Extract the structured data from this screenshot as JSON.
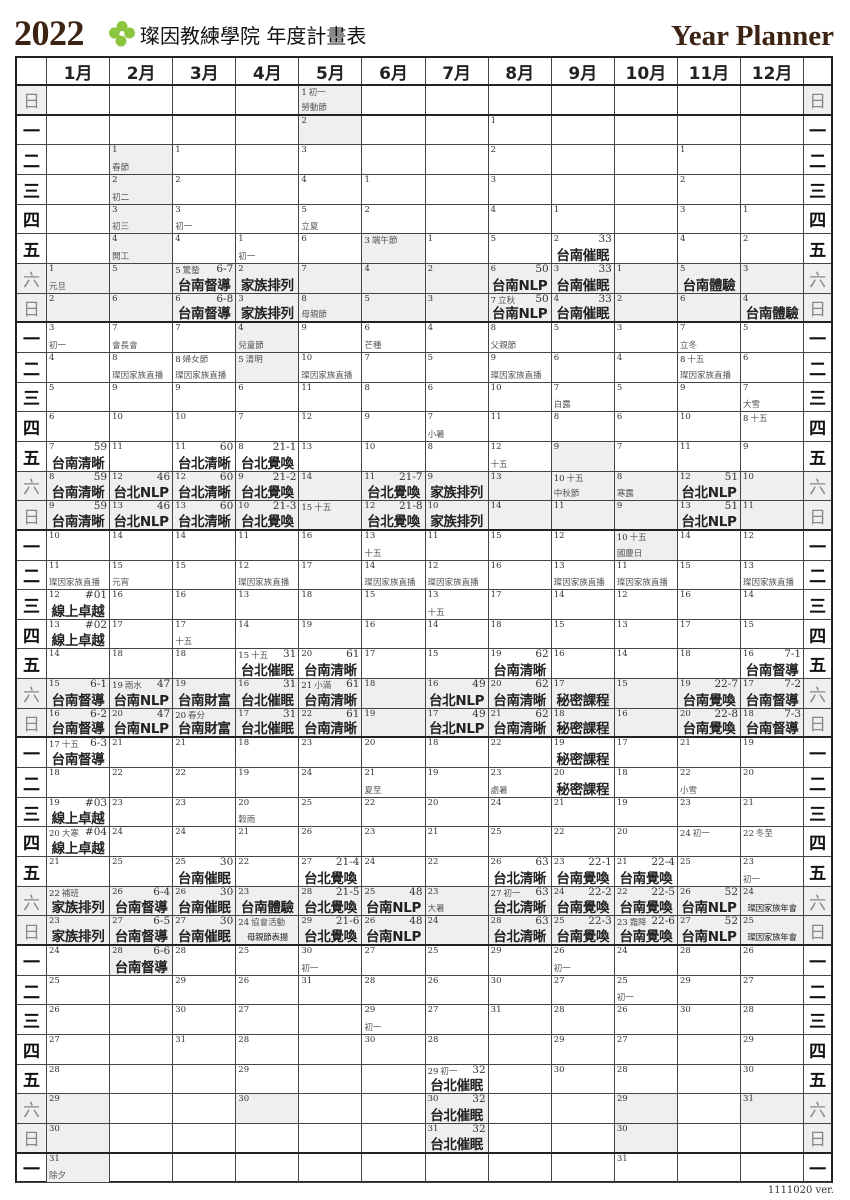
{
  "header": {
    "year": "2022",
    "title": "璨因教練學院 年度計畫表",
    "subtitle": "Year Planner",
    "version": "1111020 ver."
  },
  "colors": {
    "brand_brown": "#3d2314",
    "logo_green": "#8cc63f",
    "weekend_bg": "#efefef"
  },
  "weekdays": [
    "日",
    "一",
    "二",
    "三",
    "四",
    "五",
    "六"
  ],
  "months": [
    {
      "label": "1月",
      "start": 6,
      "days": 31
    },
    {
      "label": "2月",
      "start": 2,
      "days": 28
    },
    {
      "label": "3月",
      "start": 2,
      "days": 31
    },
    {
      "label": "4月",
      "start": 5,
      "days": 30
    },
    {
      "label": "5月",
      "start": 0,
      "days": 31
    },
    {
      "label": "6月",
      "start": 3,
      "days": 30
    },
    {
      "label": "7月",
      "start": 5,
      "days": 31
    },
    {
      "label": "8月",
      "start": 1,
      "days": 31
    },
    {
      "label": "9月",
      "start": 4,
      "days": 30
    },
    {
      "label": "10月",
      "start": 6,
      "days": 31
    },
    {
      "label": "11月",
      "start": 2,
      "days": 30
    },
    {
      "label": "12月",
      "start": 4,
      "days": 31
    }
  ],
  "shaded_holidays": [
    "1-31",
    "2-1",
    "2-2",
    "2-3",
    "2-4",
    "2-28",
    "4-4",
    "4-5",
    "5-2",
    "6-3",
    "9-9",
    "10-10"
  ],
  "notes": {
    "1": {
      "1": {
        "sub": "元旦"
      },
      "3": {
        "sub": "初一"
      },
      "7": {
        "tag": "59",
        "ev": "台南清晰"
      },
      "8": {
        "tag": "59",
        "ev": "台南清晰"
      },
      "9": {
        "tag": "59",
        "ev": "台南清晰"
      },
      "11": {
        "sub": "璨因家族直播"
      },
      "12": {
        "tag": "#01",
        "ev": "線上卓越"
      },
      "13": {
        "tag": "#02",
        "ev": "線上卓越"
      },
      "15": {
        "tag": "6-1",
        "ev": "台南督導"
      },
      "16": {
        "tag": "6-2",
        "ev": "台南督導"
      },
      "17": {
        "sm": "十五",
        "tag": "6-3",
        "ev": "台南督導"
      },
      "19": {
        "tag": "#03",
        "ev": "線上卓越"
      },
      "20": {
        "sm": "大寒",
        "tag": "#04",
        "ev": "線上卓越"
      },
      "22": {
        "sm": "補班",
        "ev": "家族排列"
      },
      "23": {
        "ev": "家族排列"
      },
      "31": {
        "sub": "除夕"
      }
    },
    "2": {
      "1": {
        "sub": "春節"
      },
      "2": {
        "sub": "初二"
      },
      "3": {
        "sub": "初三"
      },
      "4": {
        "sub": "開工"
      },
      "7": {
        "sub": "會長會"
      },
      "8": {
        "sub": "璨因家族直播"
      },
      "12": {
        "tag": "46",
        "ev": "台北NLP"
      },
      "13": {
        "tag": "46",
        "ev": "台北NLP"
      },
      "15": {
        "sub": "元宵"
      },
      "19": {
        "sm": "雨水",
        "tag": "47",
        "ev": "台南NLP"
      },
      "20": {
        "tag": "47",
        "ev": "台南NLP"
      },
      "26": {
        "tag": "6-4",
        "ev": "台南督導"
      },
      "27": {
        "tag": "6-5",
        "ev": "台南督導"
      },
      "28": {
        "tag": "6-6",
        "ev": "台南督導"
      }
    },
    "3": {
      "3": {
        "sub": "初一"
      },
      "5": {
        "sm": "驚蟄",
        "tag": "6-7",
        "ev": "台南督導"
      },
      "6": {
        "tag": "6-8",
        "ev": "台南督導"
      },
      "8": {
        "sm": "婦女節",
        "sub": "璨因家族直播"
      },
      "11": {
        "tag": "60",
        "ev": "台北清晰"
      },
      "12": {
        "tag": "60",
        "ev": "台北清晰"
      },
      "13": {
        "tag": "60",
        "ev": "台北清晰"
      },
      "17": {
        "sub": "十五"
      },
      "19": {
        "ev": "台南財富"
      },
      "20": {
        "sm": "春分",
        "ev": "台南財富"
      },
      "25": {
        "tag": "30",
        "ev": "台南催眠"
      },
      "26": {
        "tag": "30",
        "ev": "台南催眠"
      },
      "27": {
        "tag": "30",
        "ev": "台南催眠"
      }
    },
    "4": {
      "1": {
        "sub": "初一"
      },
      "2": {
        "ev": "家族排列"
      },
      "3": {
        "ev": "家族排列"
      },
      "4": {
        "sub": "兒童節"
      },
      "5": {
        "sm": "清明"
      },
      "8": {
        "tag": "21-1",
        "ev": "台北覺喚"
      },
      "9": {
        "tag": "21-2",
        "ev": "台北覺喚"
      },
      "10": {
        "tag": "21-3",
        "ev": "台北覺喚"
      },
      "12": {
        "sub": "璨因家族直播"
      },
      "15": {
        "sm": "十五",
        "tag": "31",
        "ev": "台北催眠"
      },
      "16": {
        "tag": "31",
        "ev": "台北催眠"
      },
      "17": {
        "tag": "31",
        "ev": "台北催眠"
      },
      "20": {
        "sub": "穀雨"
      },
      "23": {
        "ev": "台南體驗"
      },
      "24": {
        "sm": "協會活動",
        "evs": "母親節表揚"
      }
    },
    "5": {
      "1": {
        "sm": "初一",
        "sub": "勞動節"
      },
      "5": {
        "sub": "立夏"
      },
      "8": {
        "sub": "母親節"
      },
      "10": {
        "sub": "璨因家族直播"
      },
      "15": {
        "sm": "十五"
      },
      "20": {
        "tag": "61",
        "ev": "台南清晰"
      },
      "21": {
        "sm": "小滿",
        "tag": "61",
        "ev": "台南清晰"
      },
      "22": {
        "tag": "61",
        "ev": "台南清晰"
      },
      "27": {
        "tag": "21-4",
        "ev": "台北覺喚"
      },
      "28": {
        "tag": "21-5",
        "ev": "台北覺喚"
      },
      "29": {
        "tag": "21-6",
        "ev": "台北覺喚"
      },
      "30": {
        "sub": "初一"
      }
    },
    "6": {
      "3": {
        "sm": "端午節"
      },
      "6": {
        "sub": "芒種"
      },
      "11": {
        "tag": "21-7",
        "ev": "台北覺喚"
      },
      "12": {
        "tag": "21-8",
        "ev": "台北覺喚"
      },
      "13": {
        "sub": "十五"
      },
      "14": {
        "sub": "璨因家族直播"
      },
      "21": {
        "sub": "夏至"
      },
      "25": {
        "tag": "48",
        "ev": "台南NLP"
      },
      "26": {
        "tag": "48",
        "ev": "台南NLP"
      },
      "29": {
        "sub": "初一"
      }
    },
    "7": {
      "7": {
        "sub": "小暑"
      },
      "9": {
        "ev": "家族排列"
      },
      "10": {
        "ev": "家族排列"
      },
      "12": {
        "sub": "璨因家族直播"
      },
      "13": {
        "sub": "十五"
      },
      "16": {
        "tag": "49",
        "ev": "台北NLP"
      },
      "17": {
        "tag": "49",
        "ev": "台北NLP"
      },
      "23": {
        "sub": "大暑"
      },
      "29": {
        "sm": "初一",
        "tag": "32",
        "ev": "台北催眠"
      },
      "30": {
        "tag": "32",
        "ev": "台北催眠"
      },
      "31": {
        "tag": "32",
        "ev": "台北催眠"
      }
    },
    "8": {
      "6": {
        "tag": "50",
        "ev": "台南NLP"
      },
      "7": {
        "sm": "立秋",
        "tag": "50",
        "ev": "台南NLP"
      },
      "8": {
        "sub": "父親節"
      },
      "9": {
        "sub": "璨因家族直播"
      },
      "12": {
        "sub": "十五"
      },
      "19": {
        "tag": "62",
        "ev": "台南清晰"
      },
      "20": {
        "tag": "62",
        "ev": "台南清晰"
      },
      "21": {
        "tag": "62",
        "ev": "台南清晰"
      },
      "23": {
        "sub": "處暑"
      },
      "26": {
        "tag": "63",
        "ev": "台北清晰"
      },
      "27": {
        "sm": "初一",
        "tag": "63",
        "ev": "台北清晰"
      },
      "28": {
        "tag": "63",
        "ev": "台北清晰"
      }
    },
    "9": {
      "2": {
        "tag": "33",
        "ev": "台南催眠"
      },
      "3": {
        "tag": "33",
        "ev": "台南催眠"
      },
      "4": {
        "tag": "33",
        "ev": "台南催眠"
      },
      "7": {
        "sub": "白露"
      },
      "10": {
        "sm": "十五",
        "sub": "中秋節"
      },
      "13": {
        "sub": "璨因家族直播"
      },
      "17": {
        "ev": "秘密課程"
      },
      "18": {
        "ev": "秘密課程"
      },
      "19": {
        "ev": "秘密課程"
      },
      "20": {
        "ev": "秘密課程"
      },
      "23": {
        "tag": "22-1",
        "ev": "台南覺喚"
      },
      "24": {
        "tag": "22-2",
        "ev": "台南覺喚"
      },
      "25": {
        "tag": "22-3",
        "ev": "台南覺喚"
      },
      "26": {
        "sub": "初一"
      }
    },
    "10": {
      "8": {
        "sub": "寒露"
      },
      "10": {
        "sm": "十五",
        "sub": "國慶日"
      },
      "11": {
        "sub": "璨因家族直播"
      },
      "21": {
        "tag": "22-4",
        "ev": "台南覺喚"
      },
      "22": {
        "tag": "22-5",
        "ev": "台南覺喚"
      },
      "23": {
        "sm": "霜降",
        "tag": "22-6",
        "ev": "台南覺喚"
      },
      "25": {
        "sub": "初一"
      }
    },
    "11": {
      "5": {
        "ev": "台南體驗"
      },
      "7": {
        "sub": "立冬"
      },
      "8": {
        "sm": "十五",
        "sub": "璨因家族直播"
      },
      "12": {
        "tag": "51",
        "ev": "台北NLP"
      },
      "13": {
        "tag": "51",
        "ev": "台北NLP"
      },
      "19": {
        "tag": "22-7",
        "ev": "台南覺喚"
      },
      "20": {
        "tag": "22-8",
        "ev": "台南覺喚"
      },
      "22": {
        "sub": "小雪"
      },
      "24": {
        "sm": "初一"
      },
      "26": {
        "tag": "52",
        "ev": "台南NLP"
      },
      "27": {
        "tag": "52",
        "ev": "台南NLP"
      }
    },
    "12": {
      "4": {
        "ev": "台南體驗"
      },
      "7": {
        "sub": "大雪"
      },
      "8": {
        "sm": "十五"
      },
      "13": {
        "sub": "璨因家族直播"
      },
      "16": {
        "tag": "7-1",
        "ev": "台南督導"
      },
      "17": {
        "tag": "7-2",
        "ev": "台南督導"
      },
      "18": {
        "tag": "7-3",
        "ev": "台南督導"
      },
      "22": {
        "sm": "冬至"
      },
      "23": {
        "sub": "初一"
      },
      "24": {
        "evs": "璨因家族年會"
      },
      "25": {
        "evs": "璨因家族年會"
      }
    }
  }
}
